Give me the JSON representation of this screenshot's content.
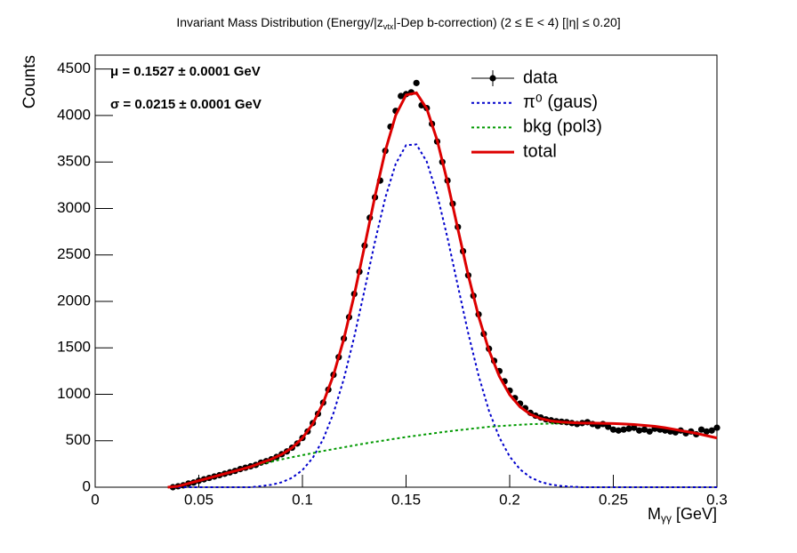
{
  "chart_data": {
    "type": "scatter",
    "title": "Invariant Mass Distribution (Energy/|z",
    "title_sub": "vtx",
    "title_end": "|-Dep b-correction)   (2 ≤ E < 4)   [|η| ≤ 0.20]",
    "x_label": "M",
    "x_label_sub": "γγ",
    "x_label_end": "  [GeV]",
    "y_label": "Counts",
    "annotations": [
      "μ = 0.1527  ± 0.0001 GeV",
      "σ = 0.0215  ± 0.0001 GeV"
    ],
    "xlim": [
      0,
      0.3
    ],
    "ylim": [
      0,
      4650
    ],
    "xticks": [
      0,
      0.05,
      0.1,
      0.15,
      0.2,
      0.25,
      0.3
    ],
    "yticks": [
      0,
      500,
      1000,
      1500,
      2000,
      2500,
      3000,
      3500,
      4000,
      4500
    ],
    "legend": "top-right",
    "x": [
      0.035,
      0.04,
      0.045,
      0.05,
      0.055,
      0.06,
      0.065,
      0.07,
      0.075,
      0.08,
      0.085,
      0.09,
      0.095,
      0.1,
      0.105,
      0.11,
      0.115,
      0.12,
      0.125,
      0.13,
      0.135,
      0.14,
      0.145,
      0.15,
      0.155,
      0.16,
      0.165,
      0.17,
      0.175,
      0.18,
      0.185,
      0.19,
      0.195,
      0.2,
      0.205,
      0.21,
      0.215,
      0.22,
      0.225,
      0.23,
      0.235,
      0.24,
      0.245,
      0.25,
      0.255,
      0.26,
      0.265,
      0.27,
      0.275,
      0.28,
      0.285,
      0.29,
      0.295,
      0.3
    ],
    "series": [
      {
        "name": "data",
        "color": "#000000",
        "type": "points",
        "x": [
          0.0375,
          0.04,
          0.0425,
          0.045,
          0.0475,
          0.05,
          0.0525,
          0.055,
          0.0575,
          0.06,
          0.0625,
          0.065,
          0.0675,
          0.07,
          0.0725,
          0.075,
          0.0775,
          0.08,
          0.0825,
          0.085,
          0.0875,
          0.09,
          0.0925,
          0.095,
          0.0975,
          0.1,
          0.1025,
          0.105,
          0.1075,
          0.11,
          0.1125,
          0.115,
          0.1175,
          0.12,
          0.1225,
          0.125,
          0.1275,
          0.13,
          0.1325,
          0.135,
          0.1375,
          0.14,
          0.1425,
          0.145,
          0.1475,
          0.15,
          0.1525,
          0.155,
          0.1575,
          0.16,
          0.1625,
          0.165,
          0.1675,
          0.17,
          0.1725,
          0.175,
          0.1775,
          0.18,
          0.1825,
          0.185,
          0.1875,
          0.19,
          0.1925,
          0.195,
          0.1975,
          0.2,
          0.2025,
          0.205,
          0.2075,
          0.21,
          0.2125,
          0.215,
          0.2175,
          0.22,
          0.2225,
          0.225,
          0.2275,
          0.23,
          0.2325,
          0.235,
          0.2375,
          0.24,
          0.2425,
          0.245,
          0.2475,
          0.25,
          0.2525,
          0.255,
          0.2575,
          0.26,
          0.2625,
          0.265,
          0.2675,
          0.27,
          0.2725,
          0.275,
          0.2775,
          0.28,
          0.2825,
          0.285,
          0.2875,
          0.29,
          0.2925,
          0.295,
          0.2975,
          0.3
        ],
        "values": [
          0,
          10,
          20,
          40,
          50,
          70,
          85,
          100,
          115,
          130,
          145,
          160,
          175,
          195,
          210,
          225,
          240,
          265,
          280,
          300,
          325,
          355,
          385,
          425,
          470,
          530,
          600,
          690,
          790,
          910,
          1050,
          1210,
          1400,
          1600,
          1830,
          2080,
          2320,
          2600,
          2900,
          3120,
          3300,
          3620,
          3880,
          4050,
          4210,
          4230,
          4250,
          4350,
          4110,
          4080,
          3910,
          3720,
          3500,
          3300,
          3050,
          2800,
          2540,
          2280,
          2060,
          1860,
          1650,
          1490,
          1360,
          1250,
          1140,
          1040,
          960,
          900,
          850,
          800,
          770,
          750,
          730,
          720,
          710,
          705,
          700,
          690,
          680,
          690,
          700,
          680,
          660,
          680,
          650,
          620,
          610,
          620,
          630,
          640,
          610,
          620,
          600,
          630,
          620,
          610,
          600,
          590,
          610,
          580,
          600,
          570,
          620,
          600,
          610,
          640
        ]
      },
      {
        "name": "π⁰ (gaus)",
        "color": "#0000cc",
        "type": "dotted",
        "values": [
          0,
          0,
          0,
          0,
          0,
          0,
          0,
          0,
          0,
          12,
          26,
          53,
          101,
          184,
          316,
          516,
          798,
          1167,
          1618,
          2125,
          2643,
          3116,
          3480,
          3681,
          3689,
          3503,
          3150,
          2683,
          2166,
          1657,
          1201,
          822,
          536,
          330,
          192,
          106,
          56,
          28,
          13,
          5,
          0,
          0,
          0,
          0,
          0,
          0,
          0,
          0,
          0,
          0,
          0,
          0,
          0,
          0
        ]
      },
      {
        "name": "bkg (pol3)",
        "color": "#009900",
        "type": "dotted",
        "values": [
          0,
          10,
          40,
          70,
          100,
          130,
          160,
          190,
          220,
          250,
          275,
          300,
          323,
          345,
          367,
          390,
          410,
          430,
          450,
          470,
          488,
          505,
          523,
          540,
          555,
          570,
          585,
          600,
          613,
          625,
          638,
          650,
          658,
          665,
          672,
          678,
          682,
          685,
          688,
          690,
          690,
          690,
          688,
          685,
          680,
          675,
          665,
          655,
          640,
          620,
          600,
          580,
          555,
          530
        ]
      },
      {
        "name": "total",
        "color": "#dd0000",
        "type": "solid",
        "values": [
          0,
          10,
          40,
          70,
          100,
          130,
          160,
          190,
          220,
          262,
          301,
          353,
          424,
          529,
          683,
          906,
          1208,
          1597,
          2068,
          2595,
          3131,
          3621,
          4003,
          4221,
          4244,
          4073,
          3735,
          3283,
          2779,
          2282,
          1839,
          1472,
          1194,
          995,
          864,
          784,
          738,
          713,
          701,
          695,
          690,
          690,
          688,
          685,
          680,
          675,
          665,
          655,
          640,
          620,
          600,
          580,
          555,
          530
        ]
      }
    ]
  }
}
